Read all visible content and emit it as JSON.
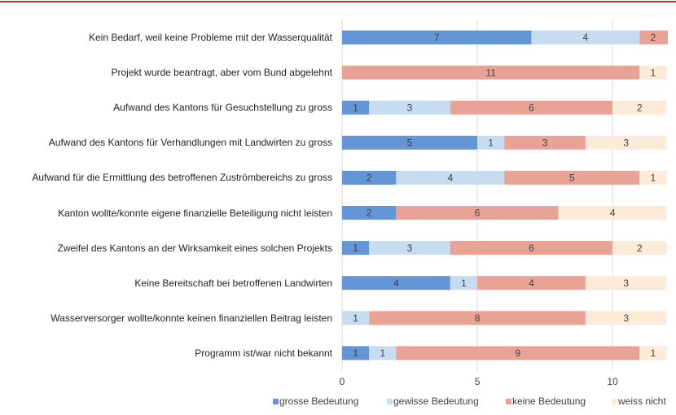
{
  "chart_data": {
    "type": "stacked-barh",
    "categories": [
      "Kein Bedarf, weil keine Probleme mit der Wasserqualität",
      "Projekt wurde beantragt, aber vom Bund abgelehnt",
      "Aufwand des Kantons für Gesuchstellung zu gross",
      "Aufwand des Kantons für Verhandlungen mit Landwirten zu gross",
      "Aufwand für die Ermittlung des betroffenen Zuströmbereichs zu gross",
      "Kanton wollte/konnte eigene finanzielle Beteiligung nicht leisten",
      "Zweifel des Kantons an der Wirksamkeit eines solchen Projekts",
      "Keine Bereitschaft bei betroffenen Landwirten",
      "Wasserversorger wollte/konnte keinen finanziellen Beitrag leisten",
      "Programm ist/war nicht bekannt"
    ],
    "series": [
      {
        "name": "grosse Bedeutung",
        "color": "#6495d6",
        "values": [
          7,
          null,
          1,
          5,
          2,
          2,
          1,
          4,
          null,
          1
        ]
      },
      {
        "name": "gewisse Bedeutung",
        "color": "#c6dcf1",
        "values": [
          4,
          null,
          3,
          1,
          4,
          null,
          3,
          1,
          1,
          1
        ]
      },
      {
        "name": "keine Bedeutung",
        "color": "#e8a396",
        "values": [
          2,
          11,
          6,
          3,
          5,
          6,
          6,
          4,
          8,
          9
        ]
      },
      {
        "name": "weiss nicht",
        "color": "#fdebd9",
        "values": [
          null,
          1,
          2,
          3,
          1,
          4,
          2,
          3,
          3,
          1
        ]
      }
    ],
    "xlim": [
      0,
      12
    ],
    "xticks": [
      0,
      5,
      10
    ],
    "grid": true,
    "legend": "bottom"
  }
}
